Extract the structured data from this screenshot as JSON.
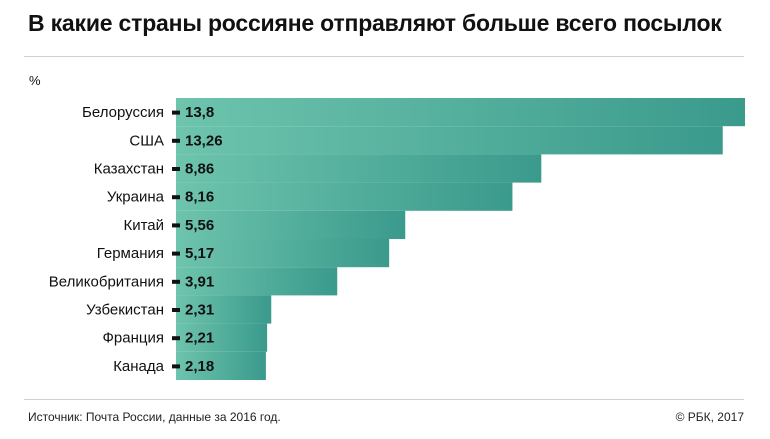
{
  "title": "В какие страны россияне отправляют больше всего посылок",
  "unit_label": "%",
  "source": "Источник: Почта России, данные за 2016 год.",
  "copyright": "© РБК, 2017",
  "colors": {
    "bar_start": "#6ec4ad",
    "bar_end": "#3a9a8c",
    "marker": "#111111"
  },
  "chart_data": {
    "type": "bar",
    "orientation": "horizontal",
    "ylabel": "%",
    "categories": [
      "Белоруссия",
      "США",
      "Казахстан",
      "Украина",
      "Китай",
      "Германия",
      "Великобритания",
      "Узбекистан",
      "Франция",
      "Канада"
    ],
    "values": [
      13.8,
      13.26,
      8.86,
      8.16,
      5.56,
      5.17,
      3.91,
      2.31,
      2.21,
      2.18
    ],
    "value_labels": [
      "13,8",
      "13,26",
      "8,86",
      "8,16",
      "5,56",
      "5,17",
      "3,91",
      "2,31",
      "2,21",
      "2,18"
    ],
    "xlim": [
      0,
      13.8
    ],
    "grid": false,
    "legend": "none"
  }
}
